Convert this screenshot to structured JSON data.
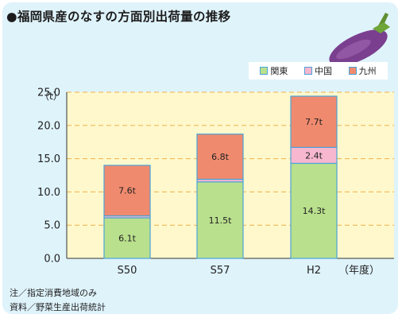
{
  "header": {
    "title": "●福岡県産のなすの方面別出荷量の推移"
  },
  "notes": [
    "注／指定消費地域のみ",
    "資料／野菜生産出荷統計"
  ],
  "colors": {
    "kanto": "#b9e08d",
    "chugoku": "#f6b7cf",
    "kyushu": "#f08a6e",
    "bar_outline": "#4aa3d8",
    "grid": "#f0b04a",
    "eggplant": "#7a3f8f"
  },
  "icons": {
    "eggplant": "eggplant-icon"
  },
  "chart_data": {
    "type": "bar",
    "stacked": true,
    "title": "●福岡県産のなすの方面別出荷量の推移",
    "ylabel": "（t）",
    "xlabel": "（年度）",
    "ylim": [
      0,
      25
    ],
    "yticks": [
      "0.0",
      "5.0",
      "10.0",
      "15.0",
      "20.0",
      "25.0"
    ],
    "categories": [
      "S50",
      "S57",
      "H2"
    ],
    "grid": "horizontal dashed",
    "legend_position": "top-right",
    "series": [
      {
        "name": "関東",
        "values": [
          6.1,
          11.5,
          14.3
        ],
        "labels": [
          "6.1t",
          "11.5t",
          "14.3t"
        ]
      },
      {
        "name": "中国",
        "values": [
          0.3,
          0.4,
          2.4
        ],
        "labels": [
          "",
          "",
          "2.4t"
        ]
      },
      {
        "name": "九州",
        "values": [
          7.6,
          6.8,
          7.7
        ],
        "labels": [
          "7.6t",
          "6.8t",
          "7.7t"
        ]
      }
    ]
  }
}
